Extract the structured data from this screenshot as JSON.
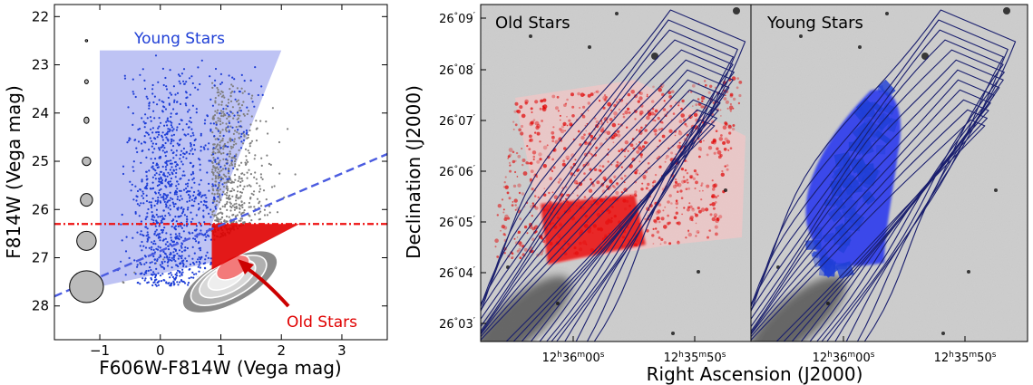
{
  "colors": {
    "young": "#1f3fd6",
    "young_fill": "#b3b8f2",
    "old": "#e00000",
    "old_fill": "#f37a7a",
    "gray_points": "#7f7f7f",
    "contour": "#1a1f6e",
    "dashed_line": "#4a5be0",
    "dashdot_line": "#ee1111"
  },
  "chart_data": [
    {
      "type": "scatter",
      "title": "",
      "xlabel": "F606W-F814W (Vega mag)",
      "ylabel": "F814W (Vega mag)",
      "xlim": [
        -1.75,
        3.75
      ],
      "ylim": [
        28.7,
        21.75
      ],
      "y_inverted": true,
      "xticks": [
        -1,
        0,
        1,
        2,
        3
      ],
      "yticks": [
        22,
        23,
        24,
        25,
        26,
        27,
        28
      ],
      "annotations": [
        {
          "text": "Young Stars",
          "color": "#1f3fd6"
        },
        {
          "text": "Old Stars",
          "color": "#e00000"
        }
      ],
      "young_region": [
        [
          -1.0,
          22.7
        ],
        [
          2.0,
          22.7
        ],
        [
          0.85,
          26.3
        ],
        [
          0.85,
          27.1
        ],
        [
          -1.0,
          27.6
        ]
      ],
      "old_region": [
        [
          0.85,
          26.3
        ],
        [
          2.3,
          26.3
        ],
        [
          0.85,
          27.25
        ]
      ],
      "completeness_line": {
        "style": "dashed",
        "x": [
          -1.75,
          3.75
        ],
        "y": [
          27.8,
          24.85
        ]
      },
      "magnitude_cut": {
        "style": "dashdot",
        "y": 26.3
      },
      "error_ellipses": [
        {
          "mag": 22.5,
          "sx": 0.02,
          "sy": 0.01
        },
        {
          "mag": 23.35,
          "sx": 0.03,
          "sy": 0.02
        },
        {
          "mag": 24.15,
          "sx": 0.04,
          "sy": 0.03
        },
        {
          "mag": 25.0,
          "sx": 0.07,
          "sy": 0.04
        },
        {
          "mag": 25.8,
          "sx": 0.1,
          "sy": 0.06
        },
        {
          "mag": 26.65,
          "sx": 0.16,
          "sy": 0.09
        },
        {
          "mag": 27.6,
          "sx": 0.28,
          "sy": 0.15
        }
      ],
      "density_contours": 4
    },
    {
      "type": "scatter",
      "panel": "Old Stars",
      "xlabel": "Right Ascension (J2000)",
      "ylabel": "Declination (J2000)",
      "ra_ticks": [
        "12h36m00s",
        "12h35m50s"
      ],
      "dec_ticks": [
        "26°09′",
        "26°08′",
        "26°07′",
        "26°06′",
        "26°05′",
        "26°04′",
        "26°03′"
      ],
      "contour_levels": 12
    },
    {
      "type": "scatter",
      "panel": "Young Stars",
      "ra_ticks": [
        "12h36m00s",
        "12h35m50s"
      ]
    }
  ],
  "labels": {
    "cmd_young": "Young Stars",
    "cmd_old": "Old Stars",
    "cmd_xlabel": "F606W-F814W (Vega mag)",
    "cmd_ylabel": "F814W (Vega mag)",
    "map_xlabel": "Right Ascension (J2000)",
    "map_ylabel": "Declination (J2000)",
    "panel_old": "Old Stars",
    "panel_young": "Young Stars"
  },
  "ticks": {
    "cmd_x": [
      "−1",
      "0",
      "1",
      "2",
      "3"
    ],
    "cmd_y": [
      "22",
      "23",
      "24",
      "25",
      "26",
      "27",
      "28"
    ],
    "dec": [
      {
        "deg": "26",
        "min": "09"
      },
      {
        "deg": "26",
        "min": "08"
      },
      {
        "deg": "26",
        "min": "07"
      },
      {
        "deg": "26",
        "min": "06"
      },
      {
        "deg": "26",
        "min": "05"
      },
      {
        "deg": "26",
        "min": "04"
      },
      {
        "deg": "26",
        "min": "03"
      }
    ],
    "ra": [
      {
        "h": "12",
        "m": "36",
        "s": "00"
      },
      {
        "h": "12",
        "m": "35",
        "s": "50"
      }
    ]
  }
}
